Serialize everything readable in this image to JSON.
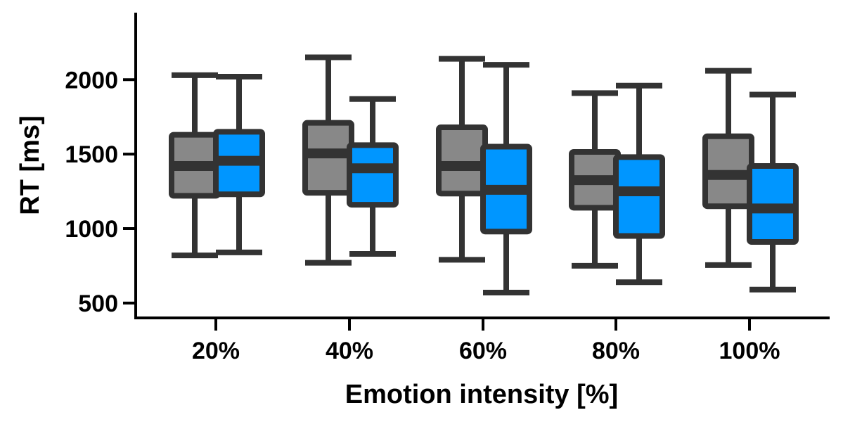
{
  "chart_data": {
    "type": "box",
    "xlabel": "Emotion intensity [%]",
    "ylabel": "RT [ms]",
    "categories": [
      "20%",
      "40%",
      "60%",
      "80%",
      "100%"
    ],
    "ylim": [
      400,
      2450
    ],
    "yticks": [
      500,
      1000,
      1500,
      2000
    ],
    "grid": false,
    "series": [
      {
        "color": "#888888",
        "boxes": [
          {
            "min": 820,
            "q1": 1220,
            "median": 1420,
            "q3": 1630,
            "max": 2030
          },
          {
            "min": 770,
            "q1": 1240,
            "median": 1505,
            "q3": 1710,
            "max": 2150
          },
          {
            "min": 790,
            "q1": 1235,
            "median": 1420,
            "q3": 1680,
            "max": 2140
          },
          {
            "min": 750,
            "q1": 1140,
            "median": 1325,
            "q3": 1515,
            "max": 1910
          },
          {
            "min": 755,
            "q1": 1150,
            "median": 1360,
            "q3": 1620,
            "max": 2060
          }
        ]
      },
      {
        "color": "#0096ff",
        "boxes": [
          {
            "min": 840,
            "q1": 1230,
            "median": 1455,
            "q3": 1650,
            "max": 2020
          },
          {
            "min": 830,
            "q1": 1160,
            "median": 1405,
            "q3": 1560,
            "max": 1870
          },
          {
            "min": 570,
            "q1": 980,
            "median": 1260,
            "q3": 1550,
            "max": 2100
          },
          {
            "min": 640,
            "q1": 950,
            "median": 1250,
            "q3": 1480,
            "max": 1960
          },
          {
            "min": 590,
            "q1": 910,
            "median": 1135,
            "q3": 1420,
            "max": 1900
          }
        ]
      }
    ]
  }
}
